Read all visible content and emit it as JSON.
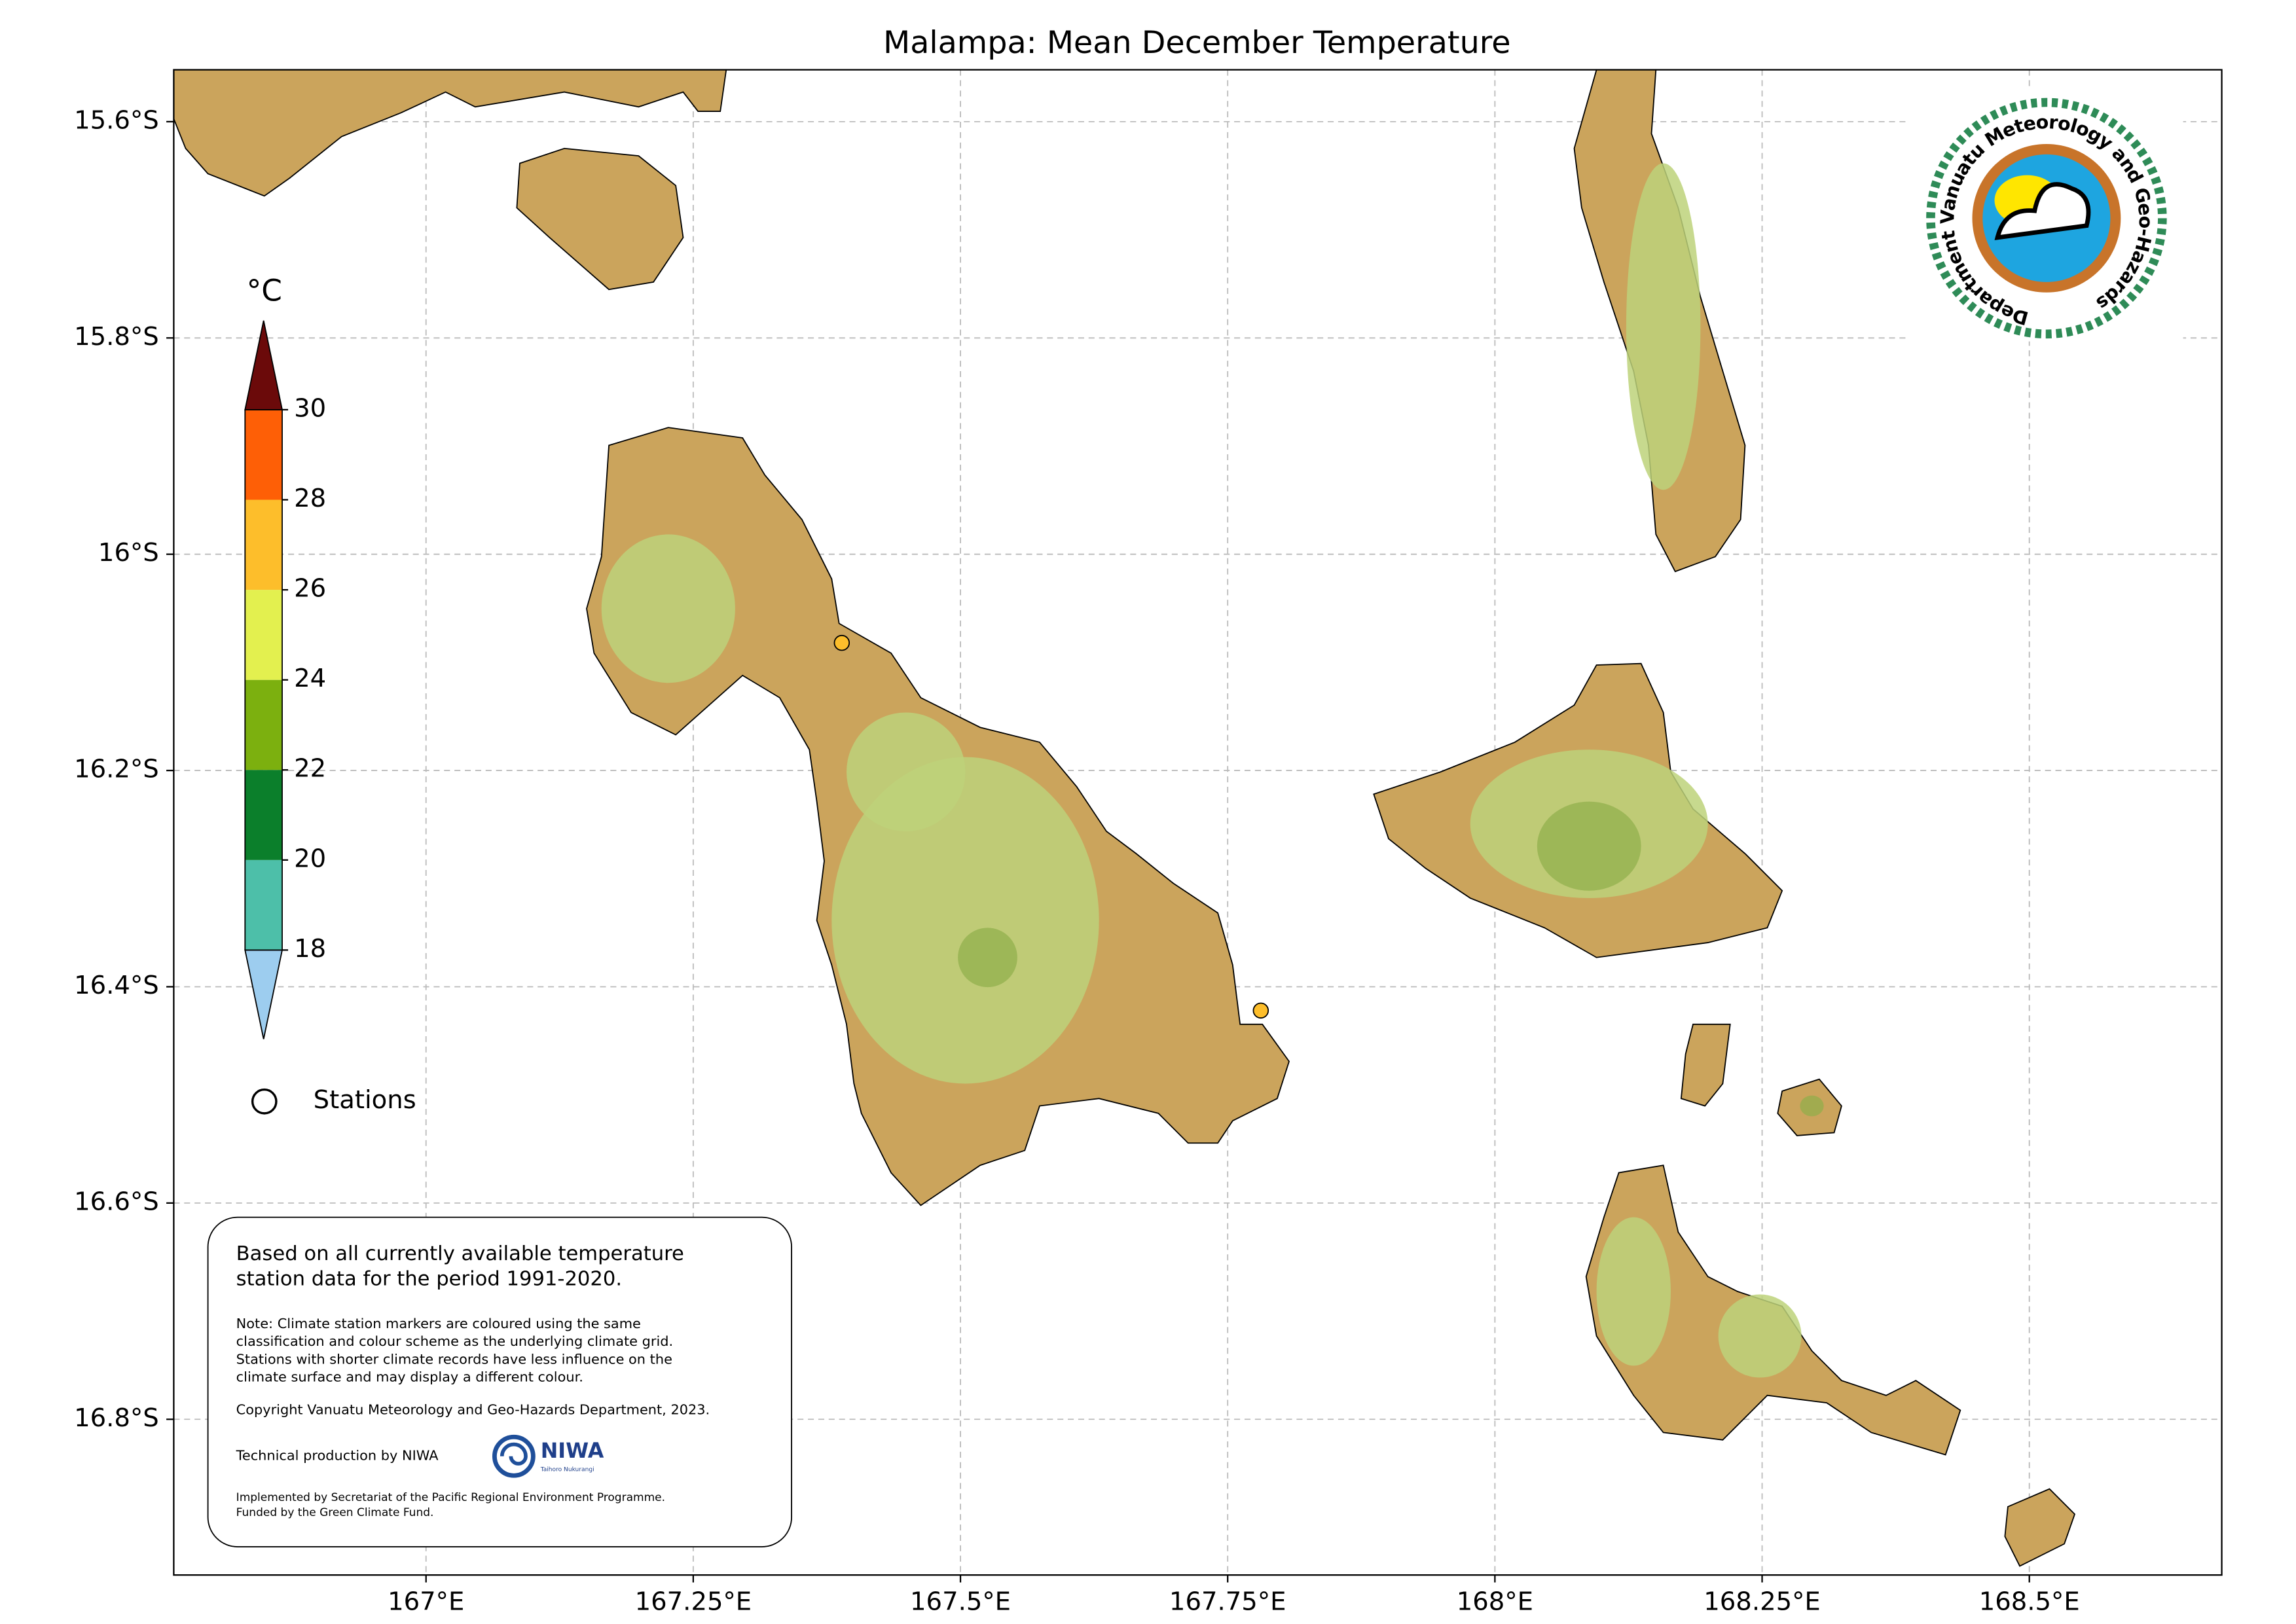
{
  "map": {
    "title": "Malampa: Mean December Temperature",
    "lonlim": [
      166.764,
      168.68
    ],
    "latlim": [
      15.552,
      16.944
    ],
    "xticks": [
      {
        "value": 167,
        "label": "167°E"
      },
      {
        "value": 167.25,
        "label": "167.25°E"
      },
      {
        "value": 167.5,
        "label": "167.5°E"
      },
      {
        "value": 167.75,
        "label": "167.75°E"
      },
      {
        "value": 168,
        "label": "168°E"
      },
      {
        "value": 168.25,
        "label": "168.25°E"
      },
      {
        "value": 168.5,
        "label": "168.5°E"
      }
    ],
    "yticks": [
      {
        "value": 15.6,
        "label": "15.6°S"
      },
      {
        "value": 15.8,
        "label": "15.8°S"
      },
      {
        "value": 16,
        "label": "16°S"
      },
      {
        "value": 16.2,
        "label": "16.2°S"
      },
      {
        "value": 16.4,
        "label": "16.4°S"
      },
      {
        "value": 16.6,
        "label": "16.6°S"
      },
      {
        "value": 16.8,
        "label": "16.8°S"
      }
    ],
    "grid": true,
    "colorbar": {
      "unit": "°C",
      "lim": [
        18,
        30
      ],
      "ticks": [
        18,
        20,
        22,
        24,
        26,
        28,
        30
      ],
      "colors": [
        "#4dbfa9",
        "#0b7f2b",
        "#7cb00f",
        "#e3f04f",
        "#fdbe2b",
        "#fe5f06"
      ],
      "under_color": "#9dcdef",
      "over_color": "#6b0a0a"
    },
    "legend_label": "Stations",
    "stations": [
      {
        "lon": 167.389,
        "lat": 16.082,
        "value": 27
      },
      {
        "lon": 167.781,
        "lat": 16.422,
        "value": 27
      }
    ],
    "note_heading": [
      "Based on all currently available temperature",
      "station data for the period 1991-2020."
    ],
    "note": [
      "Note: Climate station markers are coloured using the same",
      "classification and colour scheme as the underlying climate grid.",
      "Stations with shorter climate records have less influence on the",
      "climate surface and may display a different colour."
    ],
    "copyright": "Copyright Vanuatu Meteorology and Geo-Hazards Department, 2023.",
    "production": "Technical production by NIWA",
    "niwa": "NIWA",
    "niwa_sub": "Taihoro Nukurangi",
    "funding": [
      "Implemented by Secretariat of the Pacific Regional Environment Programme.",
      "Funded by the Green Climate Fund."
    ],
    "logo_text": "Department Vanuatu Meteorology and Geo-Hazards"
  }
}
